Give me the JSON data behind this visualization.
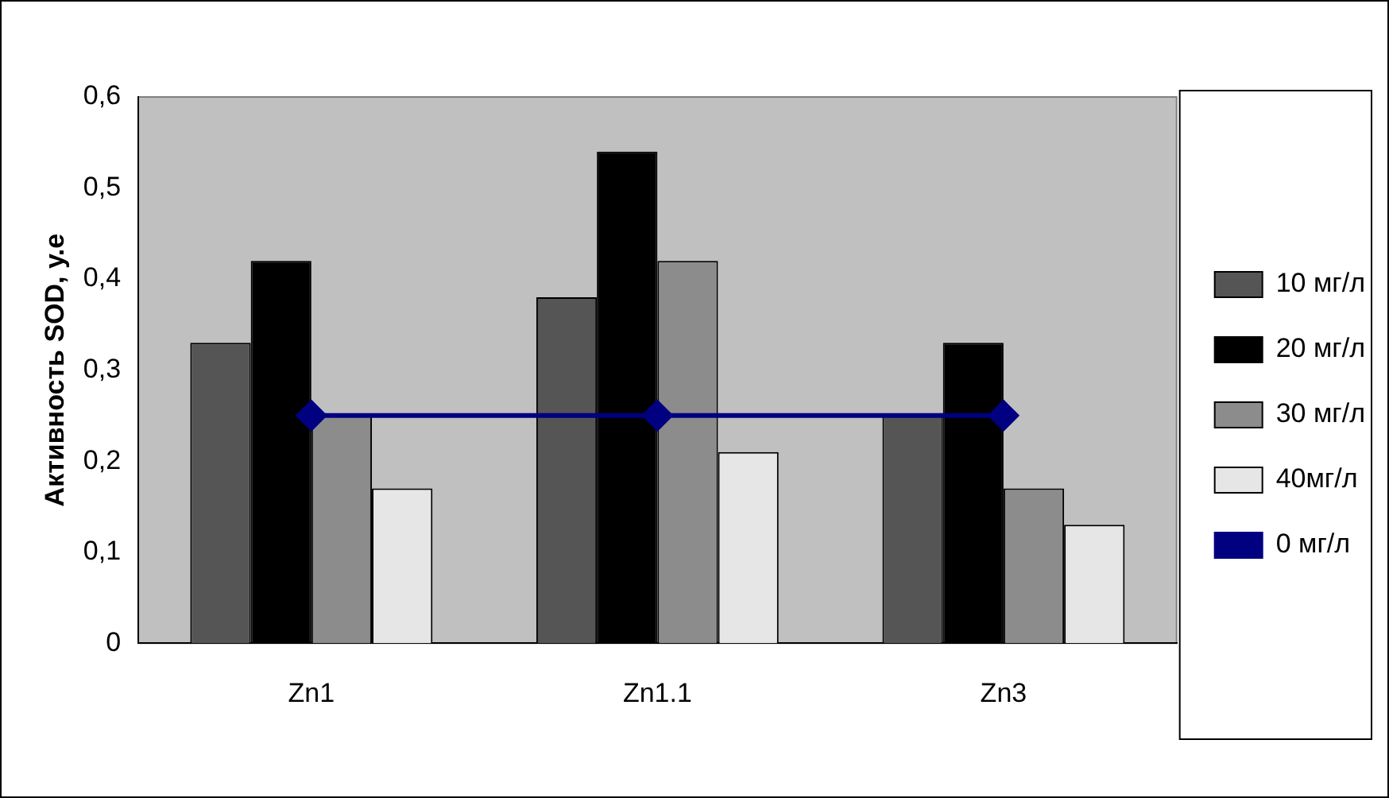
{
  "chart_data": {
    "type": "bar",
    "ylabel": "Активность SOD, у.е",
    "categories": [
      "Zn1",
      "Zn1.1",
      "Zn3"
    ],
    "series": [
      {
        "name": "10 мг/л",
        "color": "#555555",
        "values": [
          0.33,
          0.38,
          0.25
        ]
      },
      {
        "name": "20 мг/л",
        "color": "#000000",
        "values": [
          0.42,
          0.54,
          0.33
        ]
      },
      {
        "name": "30 мг/л",
        "color": "#8c8c8c",
        "values": [
          0.25,
          0.42,
          0.17
        ]
      },
      {
        "name": "40мг/л",
        "color": "#e6e6e6",
        "values": [
          0.17,
          0.21,
          0.13
        ]
      },
      {
        "name": "0 мг/л",
        "type": "line",
        "color": "#000080",
        "values": [
          0.25,
          0.25,
          0.25
        ],
        "marker": "diamond"
      }
    ],
    "ylim": [
      0,
      0.6
    ],
    "yticks": [
      {
        "value": 0,
        "label": "0"
      },
      {
        "value": 0.1,
        "label": "0,1"
      },
      {
        "value": 0.2,
        "label": "0,2"
      },
      {
        "value": 0.3,
        "label": "0,3"
      },
      {
        "value": 0.4,
        "label": "0,4"
      },
      {
        "value": 0.5,
        "label": "0,5"
      },
      {
        "value": 0.6,
        "label": "0,6"
      }
    ],
    "grid": false,
    "legend": "right"
  }
}
